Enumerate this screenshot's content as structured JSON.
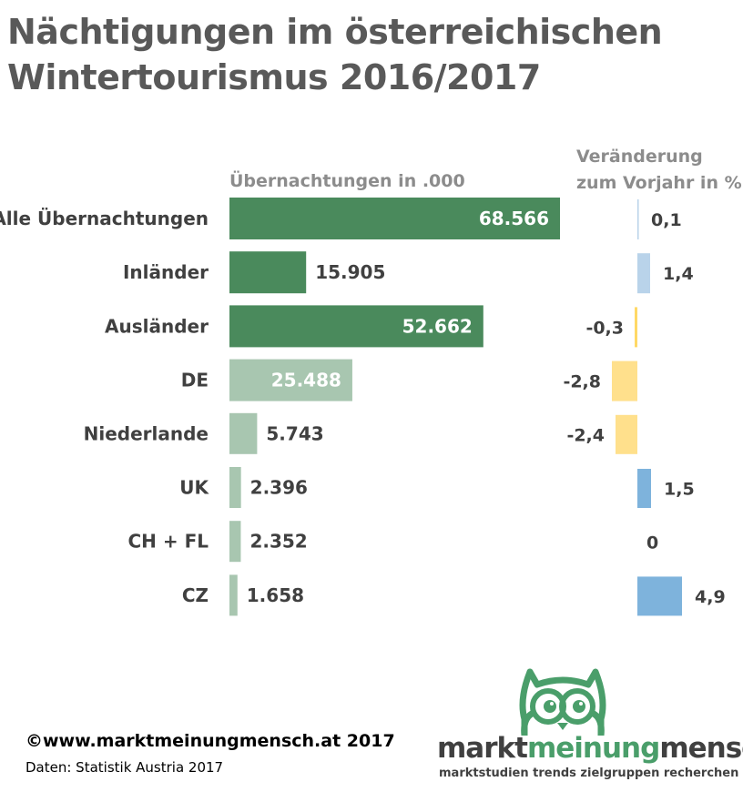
{
  "title_line1": "Nächtigungen im österreichischen",
  "title_line2": "Wintertourismus 2016/2017",
  "chart_data": {
    "type": "bar",
    "orientation": "horizontal",
    "categories": [
      "Alle Übernachtungen",
      "Inländer",
      "Ausländer",
      "DE",
      "Niederlande",
      "UK",
      "CH + FL",
      "CZ"
    ],
    "series": [
      {
        "values": [
          68566,
          15905,
          52662,
          25488,
          5743,
          2396,
          2352,
          1658
        ],
        "value_labels": [
          "68.566",
          "15.905",
          "52.662",
          "25.488",
          "5.743",
          "2.396",
          "2.352",
          "1.658"
        ],
        "colors": [
          "#4a8a5c",
          "#4a8a5c",
          "#4a8a5c",
          "#a8c6b0",
          "#a8c6b0",
          "#a8c6b0",
          "#a8c6b0",
          "#a8c6b0"
        ]
      },
      {
        "values": [
          0.1,
          1.4,
          -0.3,
          -2.8,
          -2.4,
          1.5,
          0,
          4.9
        ],
        "value_labels": [
          "0,1",
          "1,4",
          "-0,3",
          "-2,8",
          "-2,4",
          "1,5",
          "0",
          "4,9"
        ],
        "colors": [
          "#b9d3ea",
          "#b9d3ea",
          "#ffd966",
          "#ffe08c",
          "#ffe08c",
          "#7eb3dc",
          "#7eb3dc",
          "#7eb3dc"
        ]
      }
    ],
    "left_header": "Übernachtungen in .000",
    "right_header_line1": "Veränderung",
    "right_header_line2": "zum Vorjahr in %",
    "grid": false
  },
  "footer": {
    "copyright": "©www.marktmeinungmensch.at 2017",
    "source": "Daten: Statistik Austria 2017"
  },
  "logo": {
    "word1": "markt",
    "word2": "meinung",
    "word3": "mensch",
    "tagline": "marktstudien trends zielgruppen recherchen",
    "color": "#4a9e6a"
  }
}
